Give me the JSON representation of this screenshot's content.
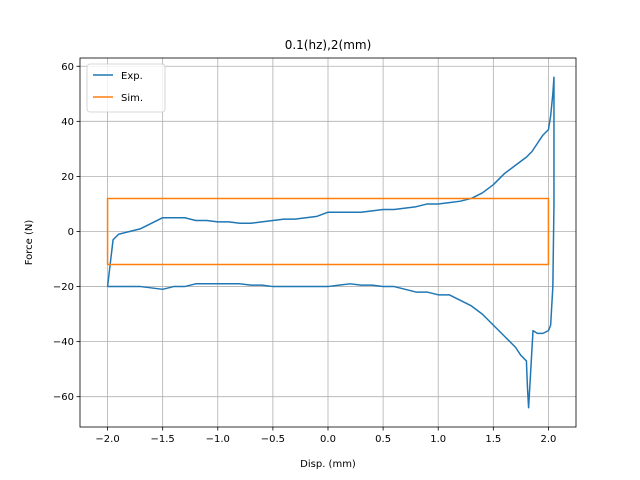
{
  "chart_data": {
    "type": "line",
    "title": "0.1(hz),2(mm)",
    "xlabel": "Disp. (mm)",
    "ylabel": "Force (N)",
    "xlim": [
      -2.25,
      2.25
    ],
    "ylim": [
      -71,
      63
    ],
    "xticks": [
      -2.0,
      -1.5,
      -1.0,
      -0.5,
      0.0,
      0.5,
      1.0,
      1.5,
      2.0
    ],
    "xtick_labels": [
      "−2.0",
      "−1.5",
      "−1.0",
      "−0.5",
      "0.0",
      "0.5",
      "1.0",
      "1.5",
      "2.0"
    ],
    "yticks": [
      -60,
      -40,
      -20,
      0,
      20,
      40,
      60
    ],
    "ytick_labels": [
      "−60",
      "−40",
      "−20",
      "0",
      "20",
      "40",
      "60"
    ],
    "grid": true,
    "legend_position": "upper-left",
    "series": [
      {
        "name": "Exp.",
        "color": "#1f77b4",
        "x": [
          -2.0,
          -1.95,
          -1.9,
          -1.8,
          -1.7,
          -1.6,
          -1.5,
          -1.4,
          -1.3,
          -1.2,
          -1.1,
          -1.0,
          -0.9,
          -0.8,
          -0.7,
          -0.6,
          -0.5,
          -0.4,
          -0.3,
          -0.2,
          -0.1,
          0.0,
          0.1,
          0.2,
          0.3,
          0.4,
          0.5,
          0.6,
          0.7,
          0.8,
          0.9,
          1.0,
          1.1,
          1.2,
          1.3,
          1.4,
          1.5,
          1.6,
          1.7,
          1.8,
          1.85,
          1.9,
          1.95,
          2.0,
          2.02,
          2.04,
          2.05,
          2.05,
          2.04,
          2.02,
          2.0,
          1.95,
          1.9,
          1.86,
          1.84,
          1.82,
          1.81,
          1.8,
          1.75,
          1.7,
          1.6,
          1.5,
          1.4,
          1.3,
          1.2,
          1.1,
          1.0,
          0.9,
          0.8,
          0.7,
          0.6,
          0.5,
          0.4,
          0.3,
          0.2,
          0.1,
          0.0,
          -0.1,
          -0.2,
          -0.3,
          -0.4,
          -0.5,
          -0.6,
          -0.7,
          -0.8,
          -0.9,
          -1.0,
          -1.1,
          -1.2,
          -1.3,
          -1.4,
          -1.5,
          -1.6,
          -1.7,
          -1.8,
          -1.9,
          -2.0,
          -2.0
        ],
        "y": [
          -20,
          -3,
          -1,
          0,
          1,
          3,
          5,
          5,
          5,
          4,
          4,
          3.5,
          3.5,
          3,
          3,
          3.5,
          4,
          4.5,
          4.5,
          5,
          5.5,
          7,
          7,
          7,
          7,
          7.5,
          8,
          8,
          8.5,
          9,
          10,
          10,
          10.5,
          11,
          12,
          14,
          17,
          21,
          24,
          27,
          29,
          32,
          35,
          37,
          42,
          50,
          56,
          10,
          -20,
          -34,
          -36,
          -37,
          -37,
          -36,
          -50,
          -64,
          -57,
          -47,
          -45,
          -42,
          -38,
          -34,
          -30,
          -27,
          -25,
          -23,
          -23,
          -22,
          -22,
          -21,
          -20,
          -20,
          -19.5,
          -19.5,
          -19,
          -19.5,
          -20,
          -20,
          -20,
          -20,
          -20,
          -20,
          -19.5,
          -19.5,
          -19,
          -19,
          -19,
          -19,
          -19,
          -20,
          -20,
          -21,
          -20.5,
          -20,
          -20,
          -20,
          -20,
          -20
        ]
      },
      {
        "name": "Sim.",
        "color": "#ff7f0e",
        "x": [
          -2.0,
          -2.0,
          2.0,
          2.0,
          -2.0,
          -2.0
        ],
        "y": [
          0,
          12,
          12,
          -12,
          -12,
          0
        ]
      }
    ]
  }
}
